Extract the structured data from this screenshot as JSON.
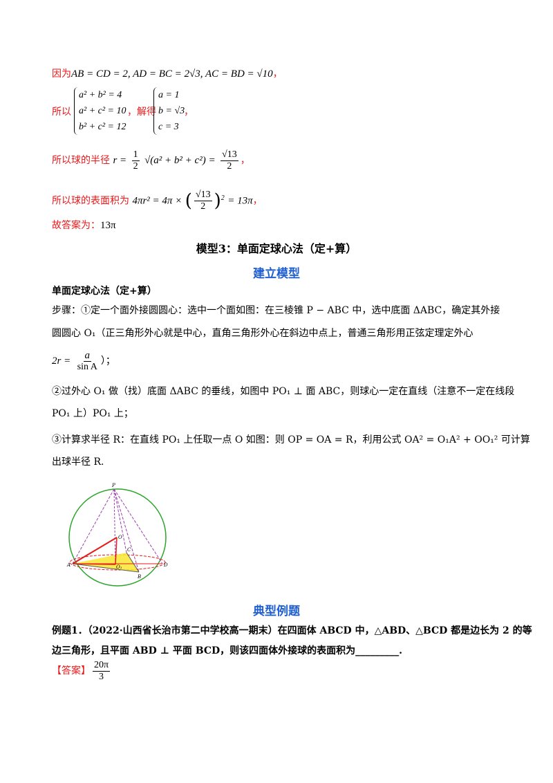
{
  "solution": {
    "l1_text": "因为",
    "l1_math": "AB = CD = 2, AD = BC = 2√3, AC = BD = √10",
    "l1_end": "，",
    "system": {
      "prefix": "所以",
      "eqs": [
        "a² + b² = 4",
        "a² + c² = 10",
        "b² + c² = 12"
      ],
      "mid": "，解得",
      "sols": [
        "a = 1",
        "b = √3",
        "c = 3"
      ],
      "end": "，"
    },
    "radius": {
      "text": "所以球的半径",
      "math_left": "r =",
      "frac1": {
        "num": "1",
        "den": "2"
      },
      "math_mid": "√(a² + b² + c²) =",
      "frac2": {
        "num": "√13",
        "den": "2"
      },
      "end": "，"
    },
    "area": {
      "text": "所以球的表面积为",
      "math_left": "4πr² = 4π ×",
      "frac": {
        "num": "√13",
        "den": "2"
      },
      "power": "2",
      "math_right": "= 13π",
      "end": "，"
    },
    "answer": {
      "text": "故答案为：",
      "math": "13π"
    }
  },
  "model": {
    "heading": "模型3：单面定球心法（定+算）",
    "section": "建立模型",
    "subtitle": "单面定球心法（定+算）",
    "line1": "步骤：①定一个面外接圆圆心：选中一个面如图：在三棱锥 P − ABC 中，选中底面 ΔABC，确定其外接",
    "line2": "圆圆心 O₁（正三角形外心就是中心，直角三角形外心在斜边中点上，普通三角形用正弦定理定外心",
    "formula": {
      "left": "2r =",
      "num": "a",
      "den": "sin A",
      "end": "）；"
    },
    "line3": "②过外心 O₁ 做（找）底面 ΔABC 的垂线，如图中 PO₁ ⊥ 面 ABC，则球心一定在直线（注意不一定在线段",
    "line4": "PO₁ 上）PO₁ 上；",
    "line5": "③计算求半径 R：在直线 PO₁ 上任取一点 O 如图：则 OP = OA = R，利用公式 OA² = O₁A² + OO₁² 可计算",
    "line6": "出球半径 R.",
    "figure": {
      "labels": [
        "P",
        "O",
        "C",
        "A",
        "O₁",
        "B",
        "D"
      ]
    }
  },
  "example": {
    "section": "典型例题",
    "line1": "例题1．（2022·山西省长治市第二中学校高一期末）在四面体 ABCD 中，△ABD、△BCD 都是边长为 2 的等",
    "line2": "边三角形，且平面 ABD ⊥ 平面 BCD，则该四面体外接球的表面积为_________.",
    "answer_label": "【答案】",
    "answer": {
      "num": "20π",
      "den": "3"
    }
  }
}
